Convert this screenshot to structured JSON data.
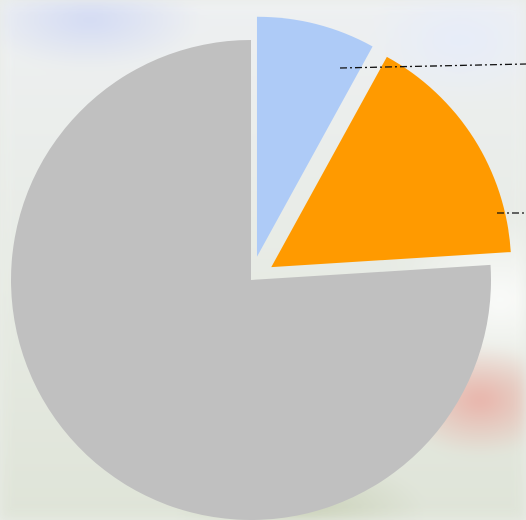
{
  "chart_data": {
    "type": "pie",
    "title": "",
    "start_angle_deg": 90,
    "direction": "clockwise",
    "slices": [
      {
        "value": 8,
        "color": "#aecbf7",
        "exploded": true,
        "label": "",
        "leader_line": true
      },
      {
        "value": 16,
        "color": "#ff9a00",
        "exploded": true,
        "label": "",
        "leader_line": true
      },
      {
        "value": 76,
        "color": "#c0c0c0",
        "exploded": false,
        "label": "",
        "leader_line": false
      }
    ],
    "leader_line_color": "#111111",
    "leader_line_style": "dash-dot",
    "legend": "none"
  }
}
